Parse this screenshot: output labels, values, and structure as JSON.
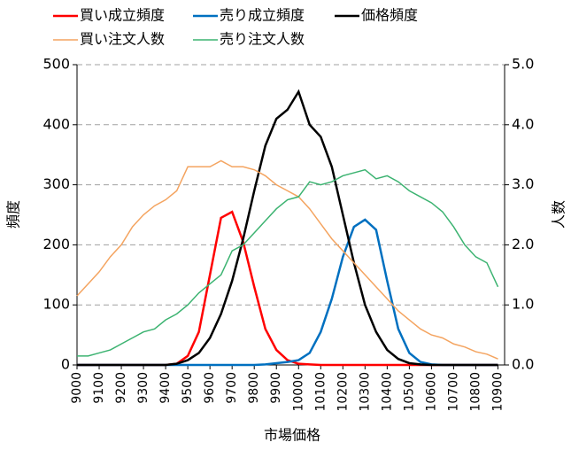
{
  "chart_data": {
    "type": "line",
    "xlabel": "市場価格",
    "ylabel": "頻度",
    "y2label": "人数",
    "x": [
      9000,
      9050,
      9100,
      9150,
      9200,
      9250,
      9300,
      9350,
      9400,
      9450,
      9500,
      9550,
      9600,
      9650,
      9700,
      9750,
      9800,
      9850,
      9900,
      9950,
      10000,
      10050,
      10100,
      10150,
      10200,
      10250,
      10300,
      10350,
      10400,
      10450,
      10500,
      10550,
      10600,
      10650,
      10700,
      10750,
      10800,
      10850,
      10900
    ],
    "xlim": [
      9000,
      10930
    ],
    "xticks": [
      9000,
      9100,
      9200,
      9300,
      9400,
      9500,
      9600,
      9700,
      9800,
      9900,
      10000,
      10100,
      10200,
      10300,
      10400,
      10500,
      10600,
      10700,
      10800,
      10900
    ],
    "ylim": [
      0,
      500
    ],
    "yticks": [
      0,
      100,
      200,
      300,
      400,
      500
    ],
    "y2lim": [
      0,
      5
    ],
    "y2ticks": [
      {
        "value": 0,
        "label": "0.0"
      },
      {
        "value": 1,
        "label": "1.0"
      },
      {
        "value": 2,
        "label": "2.0"
      },
      {
        "value": 3,
        "label": "3.0"
      },
      {
        "value": 4,
        "label": "4.0"
      },
      {
        "value": 5,
        "label": "5.0"
      }
    ],
    "grid": true,
    "legend": "top",
    "series": [
      {
        "name": "買い成立頻度",
        "color": "#ff0000",
        "values": [
          0,
          0,
          0,
          0,
          0,
          0,
          0,
          0,
          0,
          2,
          15,
          55,
          150,
          245,
          255,
          205,
          130,
          60,
          25,
          8,
          2,
          1,
          0,
          0,
          0,
          0,
          0,
          0,
          0,
          0,
          0,
          0,
          0,
          0,
          0,
          0,
          0,
          0,
          0
        ]
      },
      {
        "name": "売り成立頻度",
        "color": "#0070c0",
        "values": [
          0,
          0,
          0,
          0,
          0,
          0,
          0,
          0,
          0,
          0,
          0,
          0,
          0,
          0,
          0,
          0,
          0,
          1,
          3,
          5,
          8,
          20,
          55,
          110,
          180,
          230,
          242,
          225,
          140,
          60,
          20,
          5,
          1,
          0,
          0,
          0,
          0,
          0,
          0
        ]
      },
      {
        "name": "価格頻度",
        "color": "#000000",
        "values": [
          0,
          0,
          0,
          0,
          0,
          0,
          0,
          0,
          0,
          2,
          8,
          20,
          45,
          85,
          140,
          210,
          290,
          365,
          410,
          425,
          455,
          400,
          380,
          330,
          250,
          170,
          100,
          55,
          25,
          10,
          3,
          1,
          0,
          0,
          0,
          0,
          0,
          0,
          0
        ]
      },
      {
        "name": "買い注文人数",
        "color": "#f4a460",
        "axis": "y2",
        "values": [
          1.15,
          1.35,
          1.55,
          1.8,
          2.0,
          2.3,
          2.5,
          2.65,
          2.75,
          2.9,
          3.3,
          3.3,
          3.3,
          3.4,
          3.3,
          3.3,
          3.25,
          3.15,
          3.0,
          2.9,
          2.8,
          2.6,
          2.35,
          2.1,
          1.9,
          1.7,
          1.5,
          1.3,
          1.1,
          0.9,
          0.75,
          0.6,
          0.5,
          0.45,
          0.35,
          0.3,
          0.22,
          0.18,
          0.1
        ]
      },
      {
        "name": "売り注文人数",
        "color": "#3cb371",
        "axis": "y2",
        "values": [
          0.15,
          0.15,
          0.2,
          0.25,
          0.35,
          0.45,
          0.55,
          0.6,
          0.75,
          0.85,
          1.0,
          1.2,
          1.35,
          1.5,
          1.9,
          2.0,
          2.2,
          2.4,
          2.6,
          2.75,
          2.8,
          3.05,
          3.0,
          3.05,
          3.15,
          3.2,
          3.25,
          3.1,
          3.15,
          3.05,
          2.9,
          2.8,
          2.7,
          2.55,
          2.3,
          2.0,
          1.8,
          1.7,
          1.3
        ]
      }
    ]
  }
}
